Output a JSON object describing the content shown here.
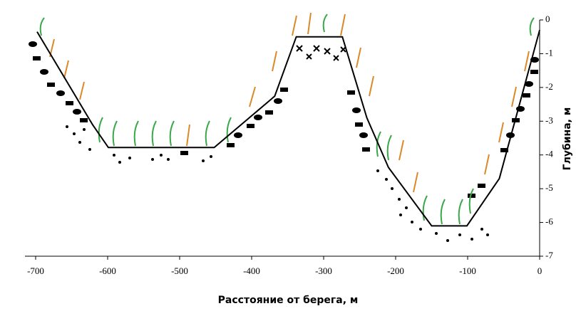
{
  "chart_data": {
    "type": "line",
    "x_label": "Расстояние  от берега, м",
    "y_label": "Глубина, м",
    "x": [
      -698,
      -621,
      -599,
      -452,
      -368,
      -338,
      -274,
      -240,
      -210,
      -150,
      -101,
      -56,
      0
    ],
    "series": [
      {
        "color": "#000000",
        "values": [
          -0.35,
          -3.1,
          -3.78,
          -3.78,
          -2.26,
          -0.5,
          -0.5,
          -2.9,
          -4.37,
          -6.1,
          -6.1,
          -4.7,
          -0.3
        ]
      }
    ],
    "xlim": [
      -700,
      0
    ],
    "xticks": [
      -700,
      -600,
      -500,
      -400,
      -300,
      -200,
      -100,
      0
    ],
    "ylim": [
      -7,
      0
    ],
    "yticks": [
      0,
      -1,
      -2,
      -3,
      -4,
      -5,
      -6,
      -7
    ]
  }
}
